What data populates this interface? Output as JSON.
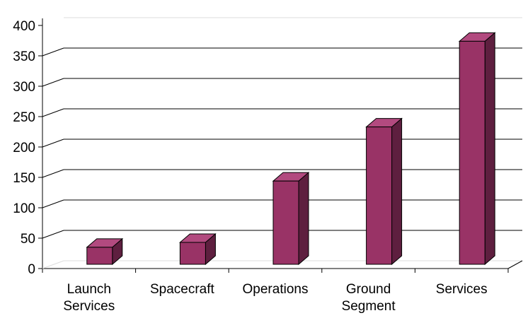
{
  "chart_data": {
    "type": "bar",
    "title": "",
    "xlabel": "",
    "ylabel": "",
    "categories": [
      [
        "Launch",
        "Services"
      ],
      [
        "Spacecraft"
      ],
      [
        "Operations"
      ],
      [
        "Ground",
        "Segment"
      ],
      [
        "Services"
      ]
    ],
    "values": [
      28,
      36,
      137,
      226,
      367
    ],
    "ylim": [
      0,
      400
    ],
    "yticks": [
      "0",
      "50",
      "100",
      "150",
      "200",
      "250",
      "300",
      "350",
      "400"
    ],
    "grid": true,
    "legend": "none",
    "colors": {
      "bar_front": "#993366",
      "bar_top": "#b24a7f",
      "bar_side": "#5e1f3f",
      "grid": "#000000"
    }
  }
}
